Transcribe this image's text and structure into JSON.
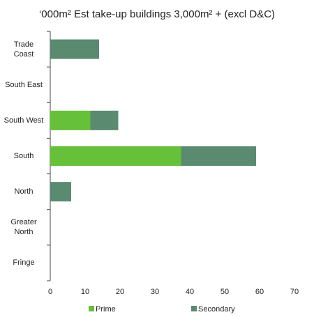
{
  "chart_data": {
    "type": "bar",
    "orientation": "horizontal",
    "stacked": true,
    "title": "‘000m² Est take-up buildings 3,000m² + (excl D&C)",
    "categories": [
      "Trade Coast",
      "South East",
      "South West",
      "South",
      "North",
      "Greater North",
      "Fringe"
    ],
    "series": [
      {
        "name": "Prime",
        "color": "#66c03a",
        "values": [
          0,
          0,
          11.5,
          37.5,
          0,
          0,
          0
        ]
      },
      {
        "name": "Secondary",
        "color": "#5a8a70",
        "values": [
          14,
          0,
          8,
          21.5,
          6,
          0,
          0
        ]
      }
    ],
    "xlim": [
      0,
      70
    ],
    "xticks": [
      0,
      10,
      20,
      30,
      40,
      50,
      60,
      70
    ],
    "legend": "bottom"
  }
}
